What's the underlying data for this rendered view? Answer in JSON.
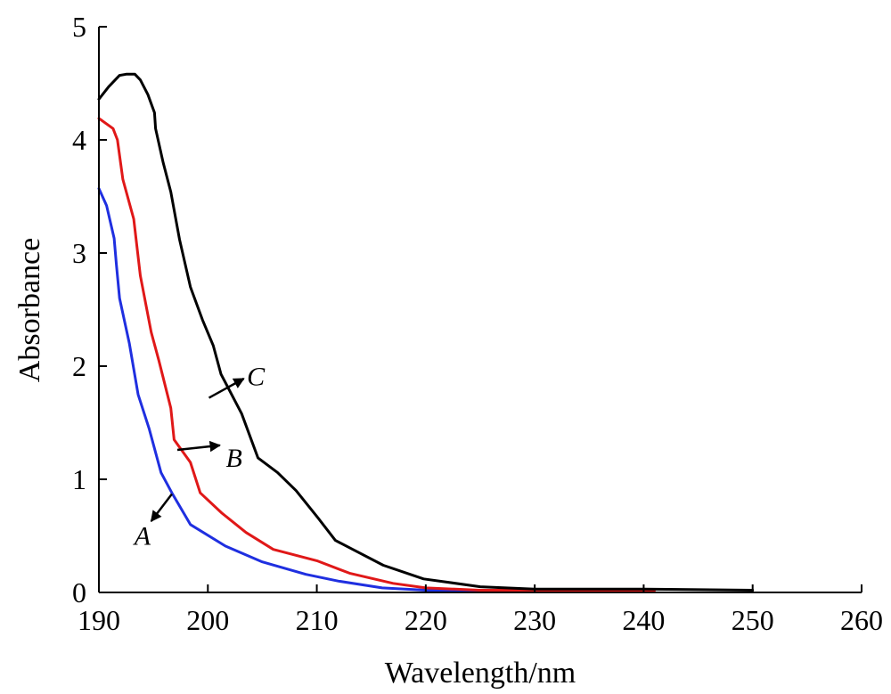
{
  "chart_data": {
    "type": "line",
    "title": "",
    "xlabel": "Wavelength/nm",
    "ylabel": "Absorbance",
    "xlim": [
      190,
      260
    ],
    "ylim": [
      0,
      5
    ],
    "x_ticks": [
      "190",
      "200",
      "210",
      "220",
      "230",
      "240",
      "250",
      "260"
    ],
    "y_ticks": [
      "0",
      "1",
      "2",
      "3",
      "4",
      "5"
    ],
    "grid": false,
    "legend": "none",
    "series": [
      {
        "name": "A",
        "color": "#1f2fe0",
        "points": [
          [
            190,
            3.57
          ],
          [
            190.7,
            3.42
          ],
          [
            191.4,
            3.13
          ],
          [
            191.6,
            2.9
          ],
          [
            191.9,
            2.6
          ],
          [
            192.8,
            2.2
          ],
          [
            193.6,
            1.75
          ],
          [
            194.6,
            1.45
          ],
          [
            195.7,
            1.06
          ],
          [
            196.7,
            0.88
          ],
          [
            198.4,
            0.6
          ],
          [
            201.6,
            0.41
          ],
          [
            205,
            0.27
          ],
          [
            209,
            0.16
          ],
          [
            212,
            0.1
          ],
          [
            216,
            0.04
          ],
          [
            220,
            0.02
          ],
          [
            224,
            0.01
          ],
          [
            228,
            0.01
          ]
        ],
        "arrow_from": [
          196.7,
          0.87
        ],
        "arrow_to": [
          194.8,
          0.63
        ],
        "label_at": [
          194,
          0.42
        ]
      },
      {
        "name": "B",
        "color": "#e01818",
        "points": [
          [
            190,
            4.19
          ],
          [
            191.3,
            4.1
          ],
          [
            191.7,
            4.0
          ],
          [
            192.2,
            3.65
          ],
          [
            193.2,
            3.3
          ],
          [
            193.8,
            2.8
          ],
          [
            194.8,
            2.3
          ],
          [
            195.5,
            2.05
          ],
          [
            196.6,
            1.63
          ],
          [
            196.9,
            1.35
          ],
          [
            198.4,
            1.15
          ],
          [
            199.3,
            0.88
          ],
          [
            201.3,
            0.7
          ],
          [
            203.5,
            0.53
          ],
          [
            206,
            0.38
          ],
          [
            210,
            0.28
          ],
          [
            213,
            0.17
          ],
          [
            217,
            0.08
          ],
          [
            220,
            0.04
          ],
          [
            225,
            0.02
          ],
          [
            230,
            0.02
          ],
          [
            241,
            0.02
          ]
        ],
        "arrow_from": [
          197.2,
          1.26
        ],
        "arrow_to": [
          201.1,
          1.3
        ],
        "label_at": [
          202.4,
          1.11
        ]
      },
      {
        "name": "C",
        "color": "#000000",
        "points": [
          [
            190,
            4.36
          ],
          [
            190.9,
            4.47
          ],
          [
            191.9,
            4.57
          ],
          [
            192.5,
            4.58
          ],
          [
            193.3,
            4.58
          ],
          [
            193.8,
            4.53
          ],
          [
            194.5,
            4.4
          ],
          [
            195.1,
            4.24
          ],
          [
            195.2,
            4.1
          ],
          [
            195.9,
            3.8
          ],
          [
            196.6,
            3.54
          ],
          [
            197.4,
            3.12
          ],
          [
            198.4,
            2.7
          ],
          [
            199.5,
            2.41
          ],
          [
            200.5,
            2.18
          ],
          [
            201.2,
            1.93
          ],
          [
            203.1,
            1.58
          ],
          [
            204.6,
            1.19
          ],
          [
            206.4,
            1.06
          ],
          [
            208.1,
            0.9
          ],
          [
            210.1,
            0.66
          ],
          [
            211.7,
            0.46
          ],
          [
            213.3,
            0.38
          ],
          [
            216.1,
            0.24
          ],
          [
            219.8,
            0.12
          ],
          [
            225,
            0.05
          ],
          [
            230,
            0.03
          ],
          [
            240,
            0.03
          ],
          [
            250,
            0.02
          ]
        ],
        "arrow_from": [
          200.1,
          1.72
        ],
        "arrow_to": [
          203.3,
          1.89
        ],
        "label_at": [
          204.4,
          1.83
        ]
      }
    ]
  }
}
